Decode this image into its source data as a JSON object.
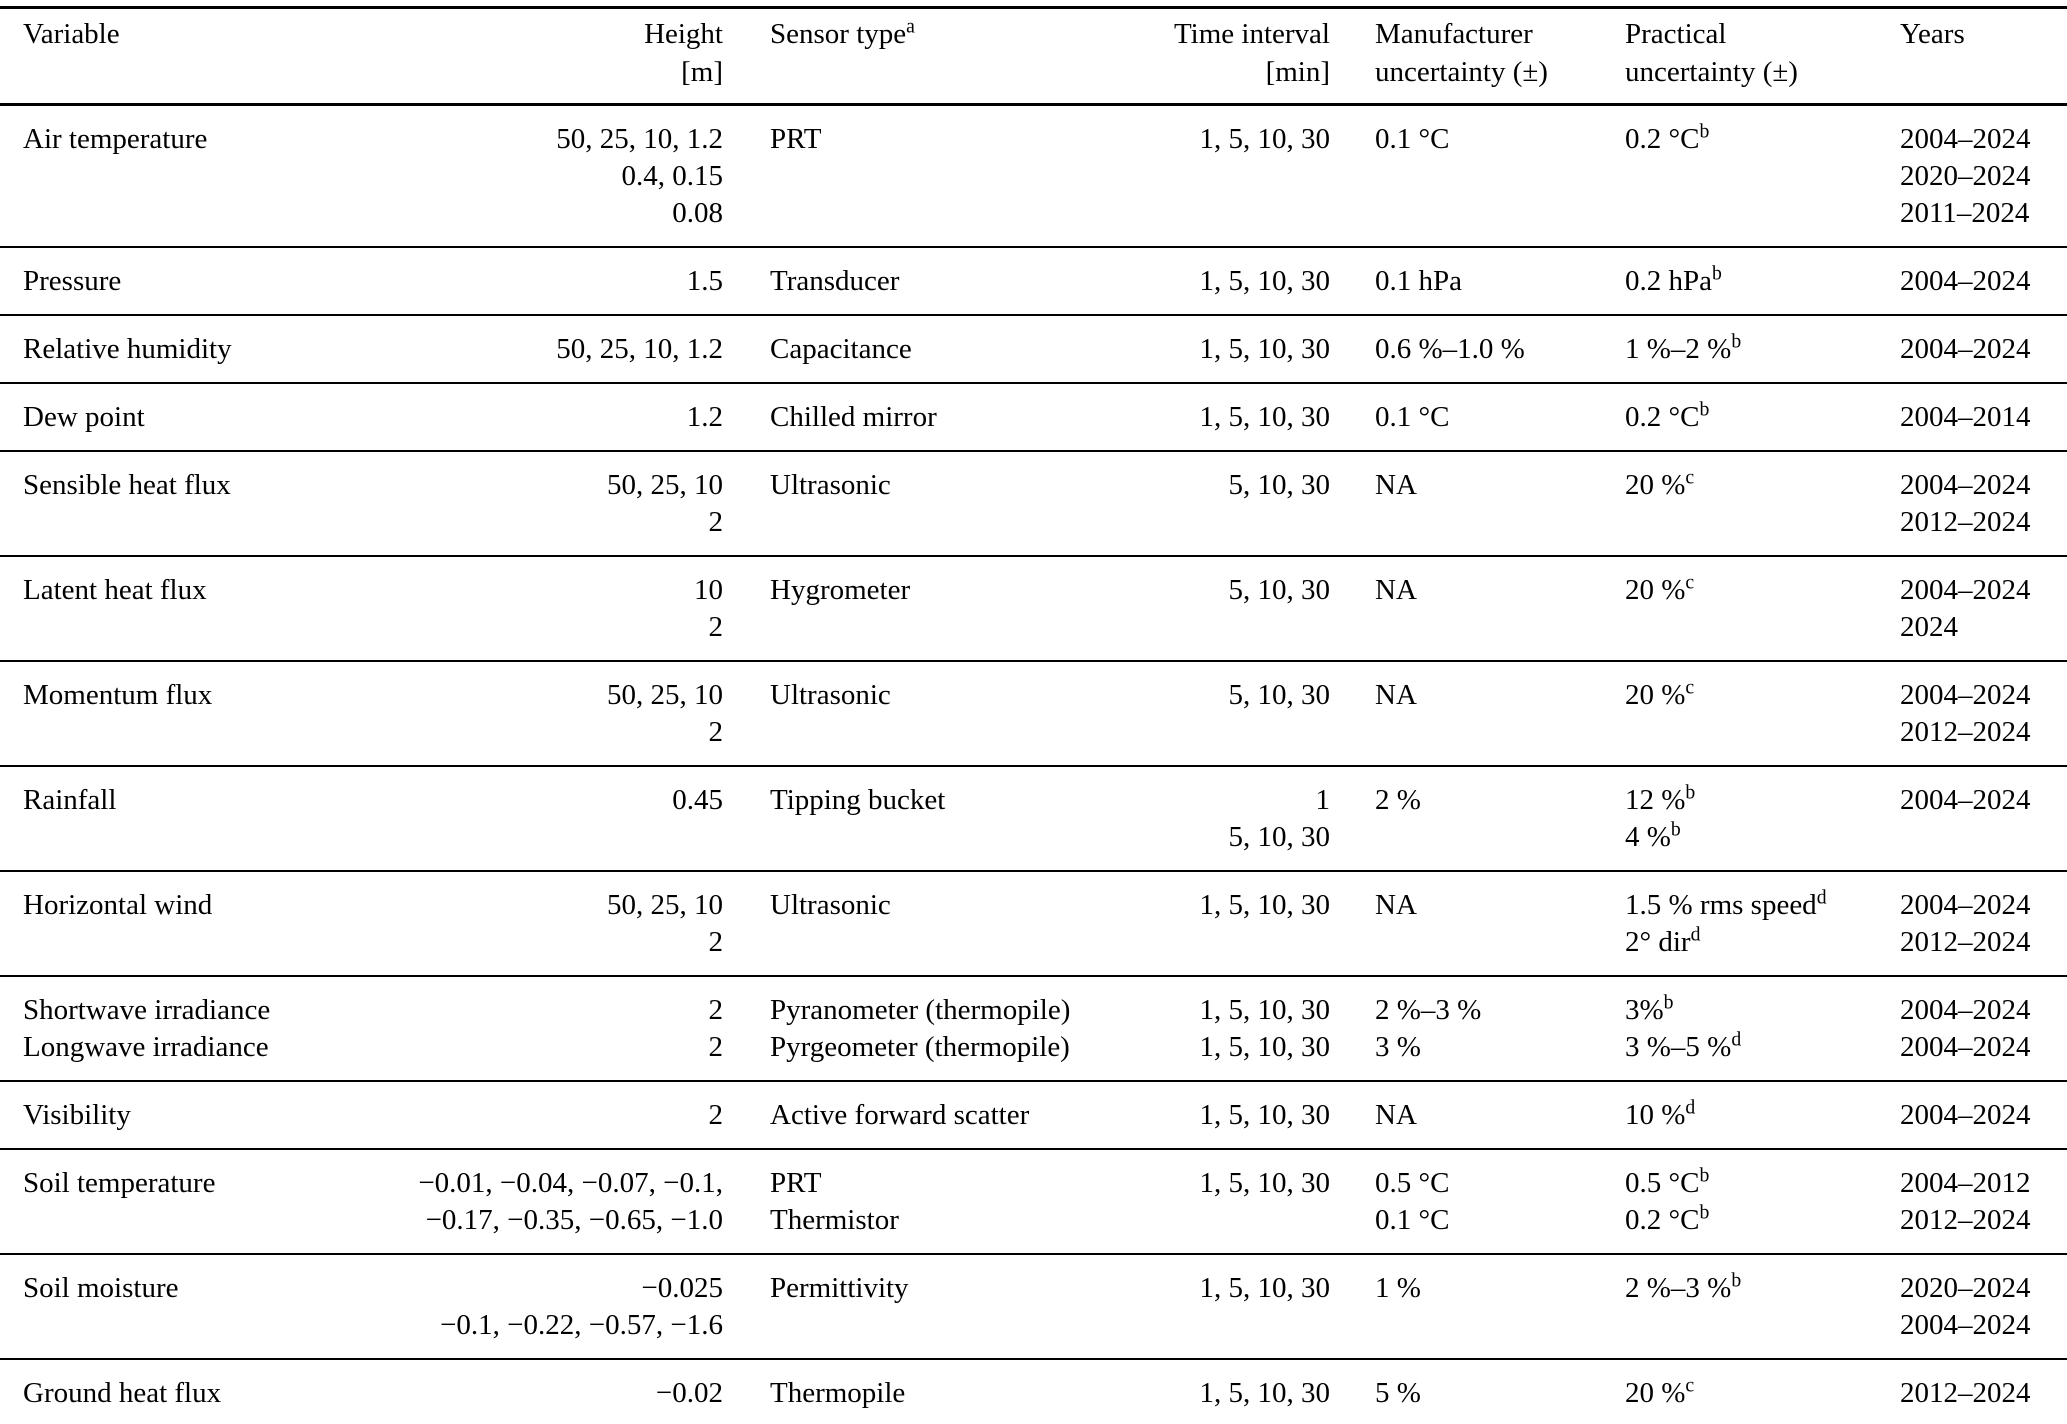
{
  "colors": {
    "background": "#ffffff",
    "text": "#000000",
    "rule": "#000000"
  },
  "table": {
    "columns": [
      {
        "key": "variable",
        "label": [
          "Variable"
        ],
        "align": "left"
      },
      {
        "key": "height",
        "label": [
          "Height",
          "[m]"
        ],
        "align": "right"
      },
      {
        "key": "sensor",
        "label": [
          "Sensor type^a"
        ],
        "align": "left"
      },
      {
        "key": "interval",
        "label": [
          "Time interval",
          "[min]"
        ],
        "align": "right"
      },
      {
        "key": "manufacturer",
        "label": [
          "Manufacturer",
          "uncertainty (±)"
        ],
        "align": "left"
      },
      {
        "key": "practical",
        "label": [
          "Practical",
          "uncertainty (±)"
        ],
        "align": "left"
      },
      {
        "key": "years",
        "label": [
          "Years"
        ],
        "align": "left"
      }
    ],
    "rows": [
      {
        "variable": [
          "Air temperature"
        ],
        "height": [
          "50, 25, 10, 1.2",
          "0.4, 0.15",
          "0.08"
        ],
        "sensor": [
          "PRT"
        ],
        "interval": [
          "1, 5, 10, 30"
        ],
        "manufacturer": [
          "0.1 °C"
        ],
        "practical": [
          "0.2 °C^b"
        ],
        "years": [
          "2004–2024",
          "2020–2024",
          "2011–2024"
        ]
      },
      {
        "variable": [
          "Pressure"
        ],
        "height": [
          "1.5"
        ],
        "sensor": [
          "Transducer"
        ],
        "interval": [
          "1, 5, 10, 30"
        ],
        "manufacturer": [
          "0.1 hPa"
        ],
        "practical": [
          "0.2 hPa^b"
        ],
        "years": [
          "2004–2024"
        ]
      },
      {
        "variable": [
          "Relative humidity"
        ],
        "height": [
          "50, 25, 10, 1.2"
        ],
        "sensor": [
          "Capacitance"
        ],
        "interval": [
          "1, 5, 10, 30"
        ],
        "manufacturer": [
          "0.6 %–1.0 %"
        ],
        "practical": [
          "1 %–2 %^b"
        ],
        "years": [
          "2004–2024"
        ]
      },
      {
        "variable": [
          "Dew point"
        ],
        "height": [
          "1.2"
        ],
        "sensor": [
          "Chilled mirror"
        ],
        "interval": [
          "1, 5, 10, 30"
        ],
        "manufacturer": [
          "0.1 °C"
        ],
        "practical": [
          "0.2 °C^b"
        ],
        "years": [
          "2004–2014"
        ]
      },
      {
        "variable": [
          "Sensible heat flux"
        ],
        "height": [
          "50, 25, 10",
          "2"
        ],
        "sensor": [
          "Ultrasonic"
        ],
        "interval": [
          "5, 10, 30"
        ],
        "manufacturer": [
          "NA"
        ],
        "practical": [
          "20 %^c"
        ],
        "years": [
          "2004–2024",
          "2012–2024"
        ]
      },
      {
        "variable": [
          "Latent heat flux"
        ],
        "height": [
          "10",
          "2"
        ],
        "sensor": [
          "Hygrometer"
        ],
        "interval": [
          "5, 10, 30"
        ],
        "manufacturer": [
          "NA"
        ],
        "practical": [
          "20 %^c"
        ],
        "years": [
          "2004–2024",
          "2024"
        ]
      },
      {
        "variable": [
          "Momentum flux"
        ],
        "height": [
          "50, 25, 10",
          "2"
        ],
        "sensor": [
          "Ultrasonic"
        ],
        "interval": [
          "5, 10, 30"
        ],
        "manufacturer": [
          "NA"
        ],
        "practical": [
          "20 %^c"
        ],
        "years": [
          "2004–2024",
          "2012–2024"
        ]
      },
      {
        "variable": [
          "Rainfall"
        ],
        "height": [
          "0.45"
        ],
        "sensor": [
          "Tipping bucket"
        ],
        "interval": [
          "1",
          "5, 10, 30"
        ],
        "manufacturer": [
          "2 %"
        ],
        "practical": [
          "12 %^b",
          "4 %^b"
        ],
        "years": [
          "2004–2024"
        ]
      },
      {
        "variable": [
          "Horizontal wind"
        ],
        "height": [
          "50, 25, 10",
          "2"
        ],
        "sensor": [
          "Ultrasonic"
        ],
        "interval": [
          "1, 5, 10, 30"
        ],
        "manufacturer": [
          "NA"
        ],
        "practical": [
          "1.5 % rms speed^d",
          "2° dir^d"
        ],
        "years": [
          "2004–2024",
          "2012–2024"
        ]
      },
      {
        "variable": [
          "Shortwave irradiance",
          "Longwave irradiance"
        ],
        "height": [
          "2",
          "2"
        ],
        "sensor": [
          "Pyranometer (thermopile)",
          "Pyrgeometer (thermopile)"
        ],
        "interval": [
          "1, 5, 10, 30",
          "1, 5, 10, 30"
        ],
        "manufacturer": [
          "2 %–3 %",
          "3 %"
        ],
        "practical": [
          "3%^b",
          "3 %–5 %^d"
        ],
        "years": [
          "2004–2024",
          "2004–2024"
        ]
      },
      {
        "variable": [
          "Visibility"
        ],
        "height": [
          "2"
        ],
        "sensor": [
          "Active forward scatter"
        ],
        "interval": [
          "1, 5, 10, 30"
        ],
        "manufacturer": [
          "NA"
        ],
        "practical": [
          "10 %^d"
        ],
        "years": [
          "2004–2024"
        ]
      },
      {
        "variable": [
          "Soil temperature"
        ],
        "height": [
          "−0.01, −0.04, −0.07, −0.1,",
          "−0.17, −0.35, −0.65, −1.0"
        ],
        "sensor": [
          "PRT",
          "Thermistor"
        ],
        "interval": [
          "1, 5, 10, 30"
        ],
        "manufacturer": [
          "0.5 °C",
          "0.1 °C"
        ],
        "practical": [
          "0.5 °C^b",
          "0.2 °C^b"
        ],
        "years": [
          "2004–2012",
          "2012–2024"
        ]
      },
      {
        "variable": [
          "Soil moisture"
        ],
        "height": [
          "−0.025",
          "−0.1, −0.22, −0.57, −1.6"
        ],
        "sensor": [
          "Permittivity"
        ],
        "interval": [
          "1, 5, 10, 30"
        ],
        "manufacturer": [
          "1 %"
        ],
        "practical": [
          "2 %–3 %^b"
        ],
        "years": [
          "2020–2024",
          "2004–2024"
        ]
      },
      {
        "variable": [
          "Ground heat flux"
        ],
        "height": [
          "−0.02"
        ],
        "sensor": [
          "Thermopile"
        ],
        "interval": [
          "1, 5, 10, 30"
        ],
        "manufacturer": [
          "5 %"
        ],
        "practical": [
          "20 %^c"
        ],
        "years": [
          "2012–2024"
        ]
      }
    ]
  }
}
